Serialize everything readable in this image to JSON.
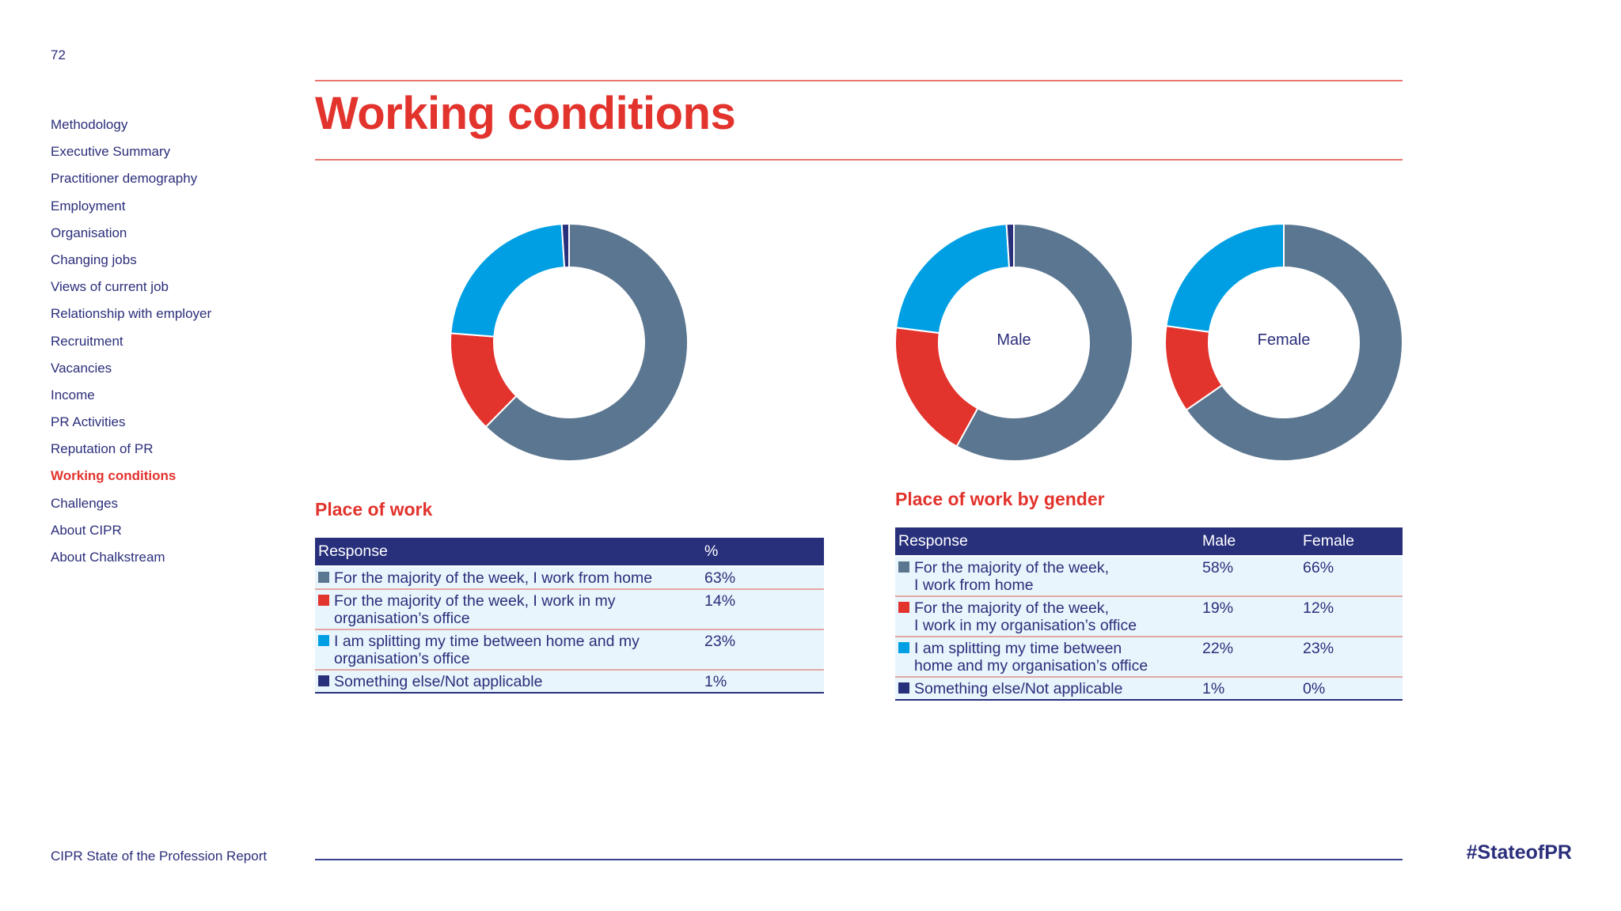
{
  "page": {
    "number": "72"
  },
  "nav": {
    "items": [
      {
        "label": "Methodology",
        "active": false
      },
      {
        "label": "Executive Summary",
        "active": false
      },
      {
        "label": "Practitioner demography",
        "active": false
      },
      {
        "label": "Employment",
        "active": false
      },
      {
        "label": "Organisation",
        "active": false
      },
      {
        "label": "Changing jobs",
        "active": false
      },
      {
        "label": "Views of current job",
        "active": false
      },
      {
        "label": "Relationship with employer",
        "active": false
      },
      {
        "label": "Recruitment",
        "active": false
      },
      {
        "label": "Vacancies",
        "active": false
      },
      {
        "label": "Income",
        "active": false
      },
      {
        "label": "PR Activities",
        "active": false
      },
      {
        "label": "Reputation of PR",
        "active": false
      },
      {
        "label": "Working conditions",
        "active": true
      },
      {
        "label": "Challenges",
        "active": false
      },
      {
        "label": "About CIPR",
        "active": false
      },
      {
        "label": "About Chalkstream",
        "active": false
      }
    ]
  },
  "header": {
    "title": "Working conditions"
  },
  "colors": {
    "home": "#5b7690",
    "office": "#e2332d",
    "split": "#009fe3",
    "other": "#28307c",
    "accent_red": "#e2332d",
    "navy": "#2b2e7a"
  },
  "chart_data": [
    {
      "type": "pie",
      "title": "Place of work",
      "label": "",
      "categories": [
        "For the majority of the week, I work from home",
        "For the majority of the week, I work in my organisation’s office",
        "I am splitting my time between home and my organisation’s office",
        "Something else/Not applicable"
      ],
      "values": [
        63,
        14,
        23,
        1
      ],
      "colors": [
        "#5b7690",
        "#e2332d",
        "#009fe3",
        "#28307c"
      ]
    },
    {
      "type": "pie",
      "title": "Place of work by gender",
      "label": "Male",
      "categories": [
        "For the majority of the week, I work from home",
        "For the majority of the week, I work in my organisation’s office",
        "I am splitting my time between home and my organisation’s office",
        "Something else/Not applicable"
      ],
      "values": [
        58,
        19,
        22,
        1
      ],
      "colors": [
        "#5b7690",
        "#e2332d",
        "#009fe3",
        "#28307c"
      ]
    },
    {
      "type": "pie",
      "title": "Place of work by gender",
      "label": "Female",
      "categories": [
        "For the majority of the week, I work from home",
        "For the majority of the week, I work in my organisation’s office",
        "I am splitting my time between home and my organisation’s office",
        "Something else/Not applicable"
      ],
      "values": [
        66,
        12,
        23,
        0
      ],
      "colors": [
        "#5b7690",
        "#e2332d",
        "#009fe3",
        "#28307c"
      ]
    },
    {
      "type": "table",
      "title": "Place of work",
      "columns": [
        "Response",
        "%"
      ],
      "rows": [
        {
          "key": "home",
          "lines": [
            "For the majority of the week, I work from home"
          ],
          "values": [
            "63%"
          ]
        },
        {
          "key": "office",
          "lines": [
            "For the majority of the week, I work in my",
            "organisation’s office"
          ],
          "values": [
            "14%"
          ]
        },
        {
          "key": "split",
          "lines": [
            "I am splitting my time between home and my",
            "organisation’s office"
          ],
          "values": [
            "23%"
          ]
        },
        {
          "key": "other",
          "lines": [
            "Something else/Not applicable"
          ],
          "values": [
            "1%"
          ]
        }
      ]
    },
    {
      "type": "table",
      "title": "Place of work by gender",
      "columns": [
        "Response",
        "Male",
        "Female"
      ],
      "rows": [
        {
          "key": "home",
          "lines": [
            "For the majority of the week,",
            "I work from home"
          ],
          "values": [
            "58%",
            "66%"
          ]
        },
        {
          "key": "office",
          "lines": [
            "For the majority of the week,",
            "I work in my organisation’s office"
          ],
          "values": [
            "19%",
            "12%"
          ]
        },
        {
          "key": "split",
          "lines": [
            "I am splitting my time between",
            "home and my organisation’s office"
          ],
          "values": [
            "22%",
            "23%"
          ]
        },
        {
          "key": "other",
          "lines": [
            "Something else/Not applicable"
          ],
          "values": [
            "1%",
            "0%"
          ]
        }
      ]
    }
  ],
  "footer": {
    "left": "CIPR State of the Profession Report",
    "right": "#StateofPR"
  }
}
